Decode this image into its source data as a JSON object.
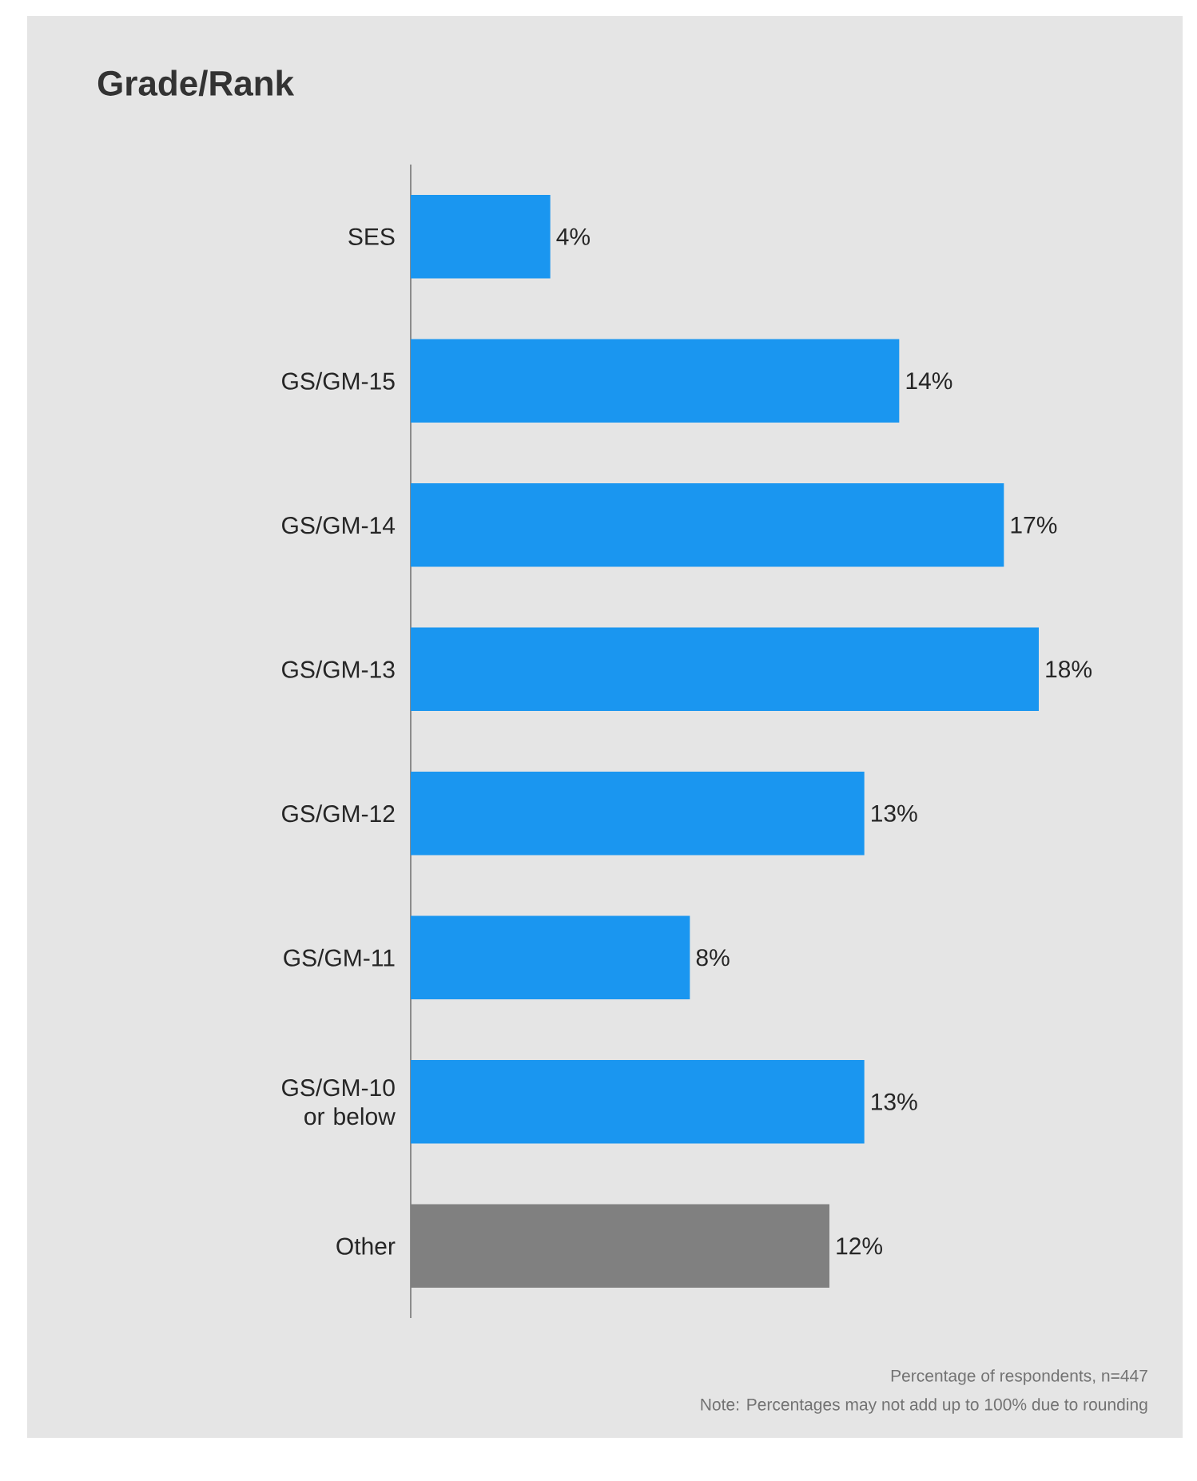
{
  "chart_data": {
    "type": "bar",
    "orientation": "horizontal",
    "title": "Grade/Rank",
    "categories": [
      "SES",
      "GS/GM-15",
      "GS/GM-14",
      "GS/GM-13",
      "GS/GM-12",
      "GS/GM-11",
      "GS/GM-10 or below",
      "Other"
    ],
    "values": [
      4,
      14,
      17,
      18,
      13,
      8,
      13,
      12
    ],
    "colors": [
      "#1a96f0",
      "#1a96f0",
      "#1a96f0",
      "#1a96f0",
      "#1a96f0",
      "#1a96f0",
      "#1a96f0",
      "#808080"
    ],
    "value_labels": [
      "4%",
      "14%",
      "17%",
      "18%",
      "13%",
      "8%",
      "13%",
      "12%"
    ],
    "annotations": [
      "Percentage of respondents, n=447",
      "Note: Percentages may not add up to 100% due to rounding"
    ]
  }
}
